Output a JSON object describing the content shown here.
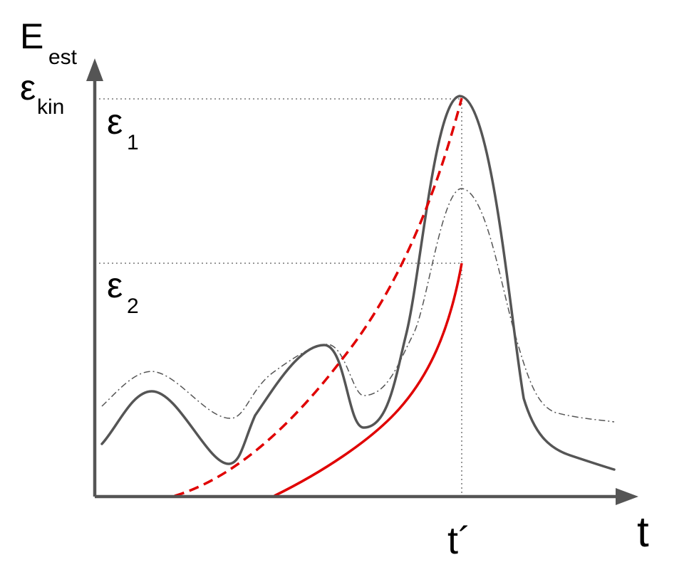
{
  "labels": {
    "y_axis_main": "E",
    "y_axis_main_sub": "est",
    "y_axis_second": "ε",
    "y_axis_second_sub": "kin",
    "x_axis": "t",
    "t_prime": "t´",
    "eps1": "ε",
    "eps1_sub": "1",
    "eps2": "ε",
    "eps2_sub": "2"
  },
  "colors": {
    "axis": "#555555",
    "curve_main": "#555555",
    "curve_dashdot": "#555555",
    "curve_red": "#e00000",
    "guide": "#777777"
  }
}
